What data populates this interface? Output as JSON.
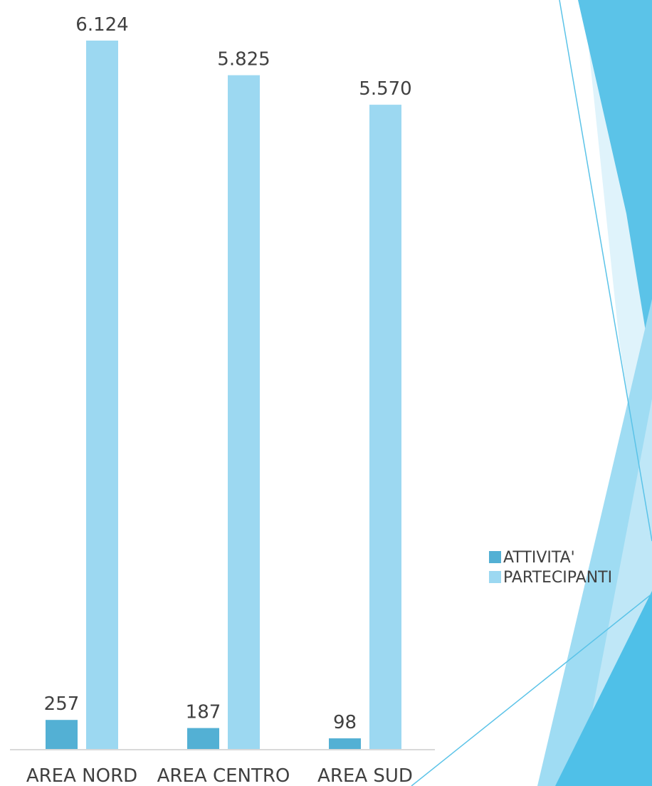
{
  "chart_data": {
    "type": "bar",
    "categories": [
      "AREA NORD",
      "AREA CENTRO",
      "AREA SUD"
    ],
    "series": [
      {
        "name": "ATTIVITA'",
        "values": [
          257,
          187,
          98
        ],
        "labels": [
          "257",
          "187",
          "98"
        ],
        "color": "#53b0d4"
      },
      {
        "name": "PARTECIPANTI",
        "values": [
          6124,
          5825,
          5570
        ],
        "labels": [
          "6.124",
          "5.825",
          "5.570"
        ],
        "color": "#9cd8f1"
      }
    ],
    "title": "",
    "xlabel": "",
    "ylabel": "",
    "ylim": [
      0,
      6500
    ],
    "grid": false,
    "legend_position": "right"
  },
  "theme": {
    "accent_dark": "#5bc3e8",
    "accent_mid": "#87d2f0",
    "accent_light": "#bfe7f7",
    "accent_pale": "#dff3fb",
    "line": "#5bc3e8",
    "axis": "#d9d9d9"
  }
}
